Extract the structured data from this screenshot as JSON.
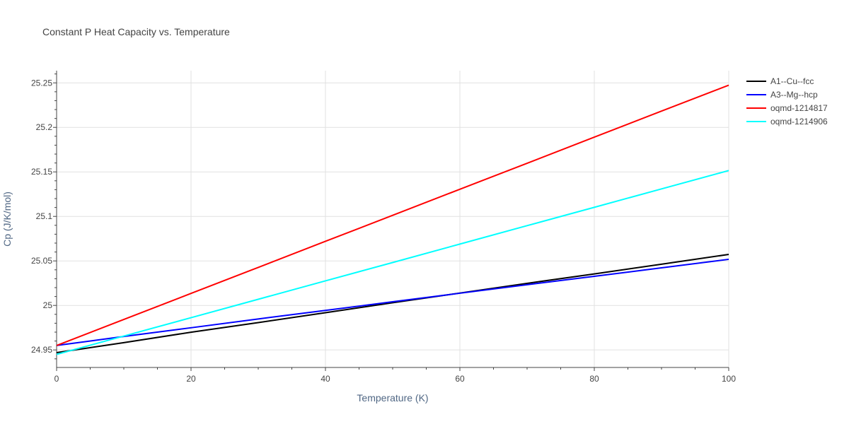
{
  "chart_data": {
    "type": "line",
    "title": "Constant P Heat Capacity vs. Temperature",
    "xlabel": "Temperature (K)",
    "ylabel": "Cp (J/K/mol)",
    "xlim": [
      0,
      100
    ],
    "ylim": [
      24.9303,
      25.2637
    ],
    "x_ticks": [
      0,
      20,
      40,
      60,
      80,
      100
    ],
    "y_ticks": [
      24.95,
      25,
      25.05,
      25.1,
      25.15,
      25.2,
      25.25
    ],
    "x_tick_labels": [
      "0",
      "20",
      "40",
      "60",
      "80",
      "100"
    ],
    "y_tick_labels": [
      "24.95",
      "25",
      "25.05",
      "25.1",
      "25.15",
      "25.2",
      "25.25"
    ],
    "grid": true,
    "legend_position": "top-right",
    "series": [
      {
        "name": "A1--Cu--fcc",
        "color": "#000000",
        "x": [
          0,
          10,
          20,
          30,
          40,
          50,
          60,
          70,
          80,
          90,
          100
        ],
        "y": [
          24.947,
          24.9582,
          24.9699,
          24.9807,
          24.9918,
          25.003,
          25.0139,
          25.0248,
          25.0354,
          25.0463,
          25.0573
        ]
      },
      {
        "name": "A3--Mg--hcp",
        "color": "#0000ff",
        "x": [
          0,
          10,
          20,
          30,
          40,
          50,
          60,
          70,
          80,
          90,
          100
        ],
        "y": [
          24.955,
          24.9651,
          24.9749,
          24.9848,
          24.9944,
          25.0041,
          25.0137,
          25.0233,
          25.0327,
          25.0422,
          25.0518
        ]
      },
      {
        "name": "oqmd-1214817",
        "color": "#ff0000",
        "x": [
          0,
          10,
          20,
          30,
          40,
          50,
          60,
          70,
          80,
          90,
          100
        ],
        "y": [
          24.955,
          24.9842,
          25.0135,
          25.0427,
          25.072,
          25.1012,
          25.1305,
          25.1597,
          25.189,
          25.2183,
          25.2474
        ]
      },
      {
        "name": "oqmd-1214906",
        "color": "#00ffff",
        "x": [
          0,
          10,
          20,
          30,
          40,
          50,
          60,
          70,
          80,
          90,
          100
        ],
        "y": [
          24.945,
          24.9656,
          24.9862,
          25.0069,
          25.0276,
          25.0482,
          25.0689,
          25.0896,
          25.1102,
          25.1309,
          25.1515
        ]
      }
    ]
  }
}
